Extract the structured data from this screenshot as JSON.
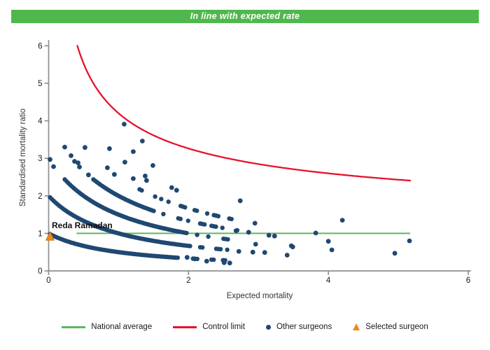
{
  "banner": {
    "text": "In line with expected rate",
    "bg": "#4fb84c",
    "fg": "#ffffff"
  },
  "chart_data": {
    "type": "scatter",
    "title": "In line with expected rate",
    "xlabel": "Expected mortality",
    "ylabel": "Standardised mortality ratio",
    "xlim": [
      0,
      6
    ],
    "ylim": [
      0,
      6
    ],
    "x_ticks": [
      0,
      2,
      4,
      6
    ],
    "y_ticks": [
      0,
      1,
      2,
      3,
      4,
      5,
      6
    ],
    "grid": false,
    "legend_position": "bottom",
    "national_average": {
      "label": "National average",
      "y": 1,
      "x_start": 0.4,
      "x_end": 5.17,
      "color": "#5cb85c"
    },
    "control_limit": {
      "label": "Control limit",
      "formula": "y = 1 + 3.2/sqrt(x)",
      "baseline": 1,
      "coef": 3.2,
      "x_start": 0.41,
      "x_end": 5.17,
      "color": "#e8112d"
    },
    "selected_surgeon": {
      "label": "Selected surgeon",
      "name": "Reda Ramadan",
      "x": 0.02,
      "y": 0.92,
      "color": "#f0871f"
    },
    "other_surgeons": {
      "label": "Other surgeons",
      "color": "#1f4872",
      "bands_formula": "smr = deaths / (expected + 1)",
      "bands": [
        {
          "deaths": 1,
          "x_start": 0.02,
          "x_end": 2.62,
          "sparse_from": 1.8
        },
        {
          "deaths": 2,
          "x_start": 0.02,
          "x_end": 2.62,
          "sparse_from": 2.0
        },
        {
          "deaths": 3,
          "x_start": 0.23,
          "x_end": 2.72,
          "sparse_from": 1.95
        },
        {
          "deaths": 4,
          "x_start": 0.64,
          "x_end": 2.72,
          "sparse_from": 1.45
        },
        {
          "deaths": 5,
          "x_start": 1.3,
          "x_end": 2.62,
          "sparse_from": 1.3
        }
      ],
      "scatter_points": [
        [
          0.02,
          2.97
        ],
        [
          0.07,
          2.78
        ],
        [
          0.23,
          3.3
        ],
        [
          0.32,
          3.07
        ],
        [
          0.37,
          2.92
        ],
        [
          0.42,
          2.88
        ],
        [
          0.44,
          2.77
        ],
        [
          0.52,
          3.29
        ],
        [
          0.57,
          2.56
        ],
        [
          0.84,
          2.75
        ],
        [
          0.87,
          3.26
        ],
        [
          0.94,
          2.57
        ],
        [
          1.08,
          3.91
        ],
        [
          1.09,
          2.9
        ],
        [
          1.21,
          3.18
        ],
        [
          1.21,
          2.46
        ],
        [
          1.34,
          3.46
        ],
        [
          1.38,
          2.53
        ],
        [
          1.4,
          2.41
        ],
        [
          1.49,
          2.81
        ],
        [
          1.76,
          2.22
        ],
        [
          1.83,
          2.15
        ],
        [
          2.74,
          1.87
        ],
        [
          2.95,
          1.27
        ],
        [
          2.86,
          1.03
        ],
        [
          2.68,
          1.07
        ],
        [
          3.15,
          0.95
        ],
        [
          3.23,
          0.93
        ],
        [
          3.82,
          1.01
        ],
        [
          2.96,
          0.71
        ],
        [
          3.47,
          0.67
        ],
        [
          3.49,
          0.64
        ],
        [
          4.0,
          0.79
        ],
        [
          4.05,
          0.56
        ],
        [
          3.41,
          0.42
        ],
        [
          3.09,
          0.49
        ],
        [
          2.92,
          0.5
        ],
        [
          2.72,
          0.52
        ],
        [
          2.51,
          0.22
        ],
        [
          2.59,
          0.21
        ],
        [
          2.26,
          0.26
        ],
        [
          1.98,
          0.36
        ],
        [
          2.09,
          0.32
        ],
        [
          4.2,
          1.35
        ],
        [
          4.95,
          0.47
        ],
        [
          5.16,
          0.8
        ]
      ]
    }
  },
  "legend": {
    "items": [
      {
        "label": "National average",
        "type": "line",
        "color": "#5cb85c"
      },
      {
        "label": "Control limit",
        "type": "line",
        "color": "#e8112d"
      },
      {
        "label": "Other surgeons",
        "type": "dot",
        "color": "#1f4872"
      },
      {
        "label": "Selected surgeon",
        "type": "triangle",
        "color": "#f0871f"
      }
    ]
  }
}
